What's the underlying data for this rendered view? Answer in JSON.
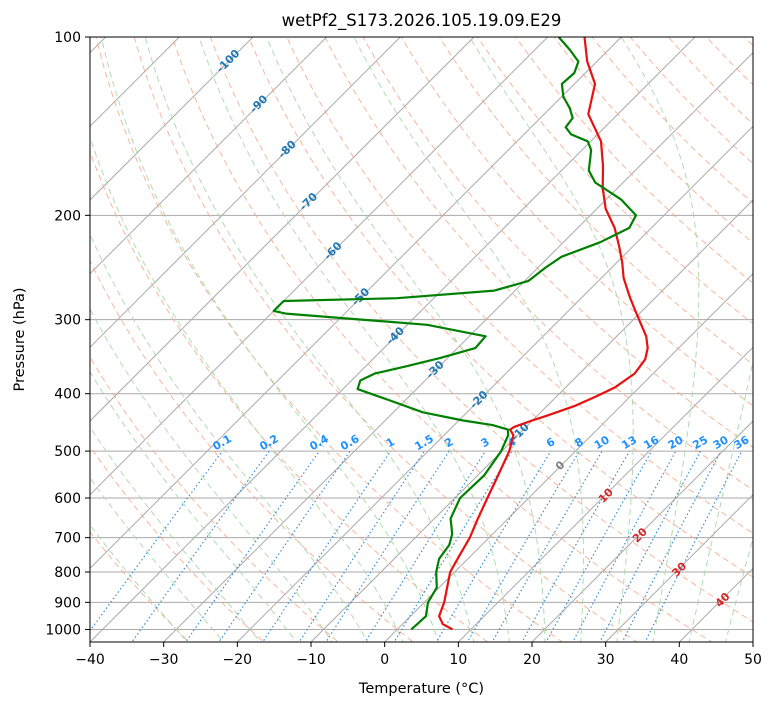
{
  "chart_data": {
    "type": "line",
    "title": "wetPf2_S173.2026.105.19.09.E29",
    "xlabel": "Temperature (°C)",
    "ylabel": "Pressure (hPa)",
    "xlim": [
      -40,
      50
    ],
    "ylim": [
      1050,
      100
    ],
    "y_scale": "log",
    "x_ticks": [
      "−40",
      "−30",
      "−20",
      "−10",
      "0",
      "10",
      "20",
      "30",
      "40",
      "50"
    ],
    "x_tick_values": [
      -40,
      -30,
      -20,
      -10,
      0,
      10,
      20,
      30,
      40,
      50
    ],
    "y_ticks": [
      "100",
      "200",
      "300",
      "400",
      "500",
      "600",
      "700",
      "800",
      "900",
      "1000"
    ],
    "y_tick_values": [
      100,
      200,
      300,
      400,
      500,
      600,
      700,
      800,
      900,
      1000
    ],
    "grid": true,
    "isotherm_skew": 45,
    "colors": {
      "temperature": "#e8110f",
      "dewpoint": "#008000",
      "isotherm": "#aaaaaa",
      "dry_adiabat": "#f4a582",
      "moist_adiabat": "#a6d9a6",
      "mixing_ratio": "#3a8fd6",
      "dry_adiabat_label": "#d62728",
      "moist_adiabat_label": "#1f77b4",
      "mixing_ratio_label": "#1e90ff",
      "zero_label": "#808080"
    },
    "series": [
      {
        "key": "temperature",
        "points": [
          [
            7.5,
            1000
          ],
          [
            5.5,
            980
          ],
          [
            3.9,
            950
          ],
          [
            2.7,
            900
          ],
          [
            1.1,
            850
          ],
          [
            -0.6,
            800
          ],
          [
            -1.6,
            750
          ],
          [
            -2.6,
            700
          ],
          [
            -4.1,
            650
          ],
          [
            -5.6,
            600
          ],
          [
            -7.2,
            550
          ],
          [
            -9.0,
            500
          ],
          [
            -10.6,
            470
          ],
          [
            -11.8,
            460
          ],
          [
            -11.6,
            455
          ],
          [
            -10.2,
            445
          ],
          [
            -8.6,
            435
          ],
          [
            -6.3,
            420
          ],
          [
            -4.7,
            405
          ],
          [
            -3.3,
            390
          ],
          [
            -2.5,
            370
          ],
          [
            -3.0,
            350
          ],
          [
            -4.2,
            335
          ],
          [
            -6.0,
            320
          ],
          [
            -8.4,
            305
          ],
          [
            -10.9,
            290
          ],
          [
            -13.5,
            275
          ],
          [
            -17.0,
            255
          ],
          [
            -19.3,
            240
          ],
          [
            -22.0,
            225
          ],
          [
            -25.0,
            210
          ],
          [
            -28.8,
            195
          ],
          [
            -32.0,
            180
          ],
          [
            -35.0,
            165
          ],
          [
            -38.6,
            150
          ],
          [
            -44.0,
            135
          ],
          [
            -47.2,
            120
          ],
          [
            -51.3,
            110
          ],
          [
            -55.0,
            100
          ]
        ]
      },
      {
        "key": "dewpoint",
        "points": [
          [
            1.9,
            1000
          ],
          [
            2.0,
            980
          ],
          [
            2.1,
            950
          ],
          [
            0.5,
            900
          ],
          [
            -0.3,
            850
          ],
          [
            -2.5,
            800
          ],
          [
            -3.9,
            760
          ],
          [
            -4.4,
            720
          ],
          [
            -5.5,
            690
          ],
          [
            -7.8,
            650
          ],
          [
            -9.3,
            600
          ],
          [
            -9.1,
            550
          ],
          [
            -10.1,
            500
          ],
          [
            -11.3,
            470
          ],
          [
            -12.1,
            460
          ],
          [
            -14.8,
            452
          ],
          [
            -19.4,
            444
          ],
          [
            -26.0,
            430
          ],
          [
            -32.3,
            410
          ],
          [
            -38.0,
            393
          ],
          [
            -38.8,
            380
          ],
          [
            -37.8,
            370
          ],
          [
            -34.6,
            360
          ],
          [
            -31.0,
            348
          ],
          [
            -27.6,
            335
          ],
          [
            -27.8,
            320
          ],
          [
            -37.3,
            306
          ],
          [
            -58.0,
            293
          ],
          [
            -60.0,
            290
          ],
          [
            -60.0,
            279
          ],
          [
            -45.0,
            276
          ],
          [
            -32.8,
            268
          ],
          [
            -29.5,
            258
          ],
          [
            -29.0,
            245
          ],
          [
            -28.3,
            235
          ],
          [
            -25.0,
            222
          ],
          [
            -23.0,
            210
          ],
          [
            -23.8,
            200
          ],
          [
            -28.0,
            188
          ],
          [
            -33.8,
            176
          ],
          [
            -36.3,
            168
          ],
          [
            -37.8,
            160
          ],
          [
            -38.8,
            155
          ],
          [
            -40.4,
            150
          ],
          [
            -43.6,
            146
          ],
          [
            -45.3,
            142
          ],
          [
            -45.6,
            137
          ],
          [
            -47.3,
            132
          ],
          [
            -49.8,
            126
          ],
          [
            -51.7,
            120
          ],
          [
            -51.5,
            115
          ],
          [
            -52.5,
            110
          ],
          [
            -55.3,
            105
          ],
          [
            -58.5,
            100
          ]
        ]
      }
    ],
    "dry_adiabat_labels": [
      {
        "text": "10",
        "t": 10,
        "p": 600
      },
      {
        "text": "20",
        "t": 20,
        "p": 700
      },
      {
        "text": "30",
        "t": 30,
        "p": 800
      },
      {
        "text": "40",
        "t": 40,
        "p": 900
      }
    ],
    "moist_adiabat_labels": [
      {
        "text": "-100",
        "t": -100,
        "p": 110
      },
      {
        "text": "-90",
        "t": -90,
        "p": 130
      },
      {
        "text": "-80",
        "t": -80,
        "p": 155
      },
      {
        "text": "-70",
        "t": -70,
        "p": 190
      },
      {
        "text": "-60",
        "t": -60,
        "p": 230
      },
      {
        "text": "-50",
        "t": -50,
        "p": 275
      },
      {
        "text": "-40",
        "t": -40,
        "p": 320
      },
      {
        "text": "-30",
        "t": -30,
        "p": 365
      },
      {
        "text": "-20",
        "t": -20,
        "p": 410
      },
      {
        "text": "-10",
        "t": -10,
        "p": 465
      },
      {
        "text": "0",
        "t": 0,
        "p": 530
      }
    ],
    "mixing_ratio_labels": [
      "0.1",
      "0.2",
      "0.4",
      "0.6",
      "1",
      "1.5",
      "2",
      "3",
      "4",
      "6",
      "8",
      "10",
      "13",
      "16",
      "20",
      "25",
      "30",
      "36"
    ],
    "mixing_ratio_values": [
      0.1,
      0.2,
      0.4,
      0.6,
      1,
      1.5,
      2,
      3,
      4,
      6,
      8,
      10,
      13,
      16,
      20,
      25,
      30,
      36
    ],
    "mixing_ratio_label_pressure": 500
  }
}
